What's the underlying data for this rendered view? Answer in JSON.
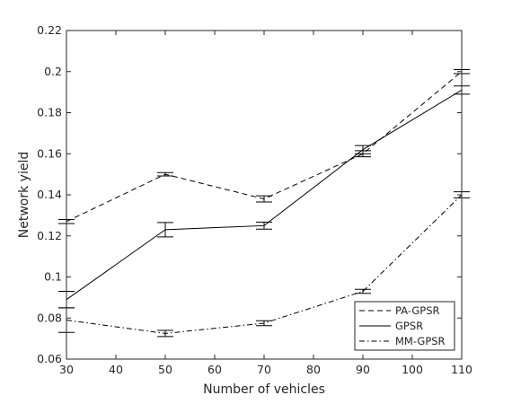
{
  "chart_data": {
    "type": "line",
    "title": "",
    "xlabel": "Number of vehicles",
    "ylabel": "Network yield",
    "xlim": [
      30,
      110
    ],
    "ylim": [
      0.06,
      0.22
    ],
    "xticks": [
      "30",
      "40",
      "50",
      "60",
      "70",
      "80",
      "90",
      "100",
      "110"
    ],
    "yticks": [
      "0.06",
      "0.08",
      "0.1",
      "0.12",
      "0.14",
      "0.16",
      "0.18",
      "0.2",
      "0.22"
    ],
    "grid": false,
    "legend_position": "bottom-right",
    "x": [
      30,
      50,
      70,
      90,
      110
    ],
    "series": [
      {
        "name": "PA-GPSR",
        "line_style": "dashed",
        "color": "#000000",
        "values": [
          0.127,
          0.15,
          0.138,
          0.16,
          0.2
        ],
        "error": [
          0.001,
          0.0008,
          0.0015,
          0.0015,
          0.001
        ]
      },
      {
        "name": "GPSR",
        "line_style": "solid",
        "color": "#000000",
        "values": [
          0.089,
          0.123,
          0.125,
          0.162,
          0.191
        ],
        "error": [
          0.004,
          0.0035,
          0.0017,
          0.002,
          0.002
        ]
      },
      {
        "name": "MM-GPSR",
        "line_style": "dash-dot",
        "color": "#000000",
        "values": [
          0.079,
          0.0725,
          0.0775,
          0.093,
          0.14
        ],
        "error": [
          0.006,
          0.0015,
          0.0012,
          0.001,
          0.0015
        ]
      }
    ]
  }
}
